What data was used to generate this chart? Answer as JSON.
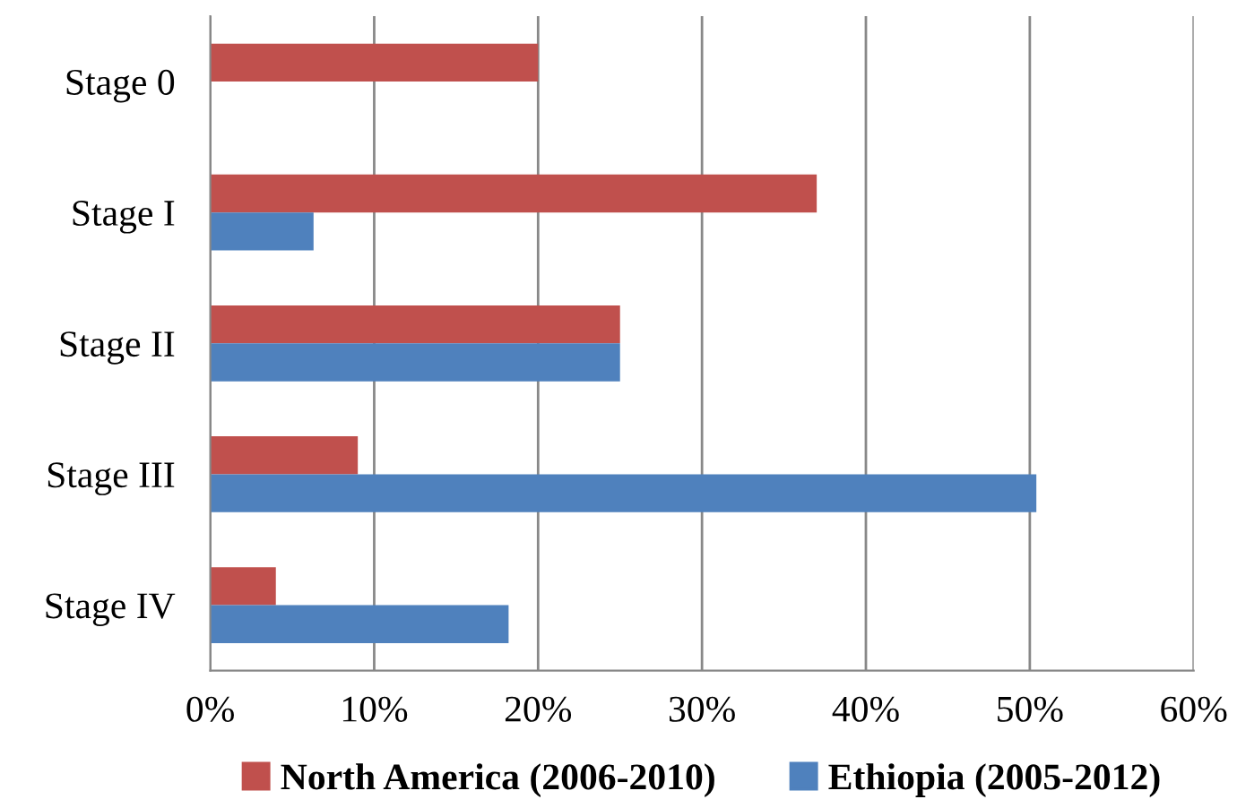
{
  "chart_data": {
    "type": "bar",
    "orientation": "horizontal",
    "categories": [
      "Stage 0",
      "Stage I",
      "Stage II",
      "Stage III",
      "Stage IV"
    ],
    "series": [
      {
        "name": "North America (2006-2010)",
        "color": "#c0504d",
        "values": [
          20,
          37,
          25,
          9,
          4
        ]
      },
      {
        "name": "Ethiopia (2005-2012)",
        "color": "#4f81bd",
        "values": [
          null,
          6.3,
          25,
          50.4,
          18.2
        ]
      }
    ],
    "xlim": [
      0,
      60
    ],
    "xticks": [
      {
        "value": 0,
        "label": "0%"
      },
      {
        "value": 10,
        "label": "10%"
      },
      {
        "value": 20,
        "label": "20%"
      },
      {
        "value": 30,
        "label": "30%"
      },
      {
        "value": 40,
        "label": "40%"
      },
      {
        "value": 50,
        "label": "50%"
      },
      {
        "value": 60,
        "label": "60%"
      }
    ],
    "grid": "x",
    "legend": "bottom"
  }
}
